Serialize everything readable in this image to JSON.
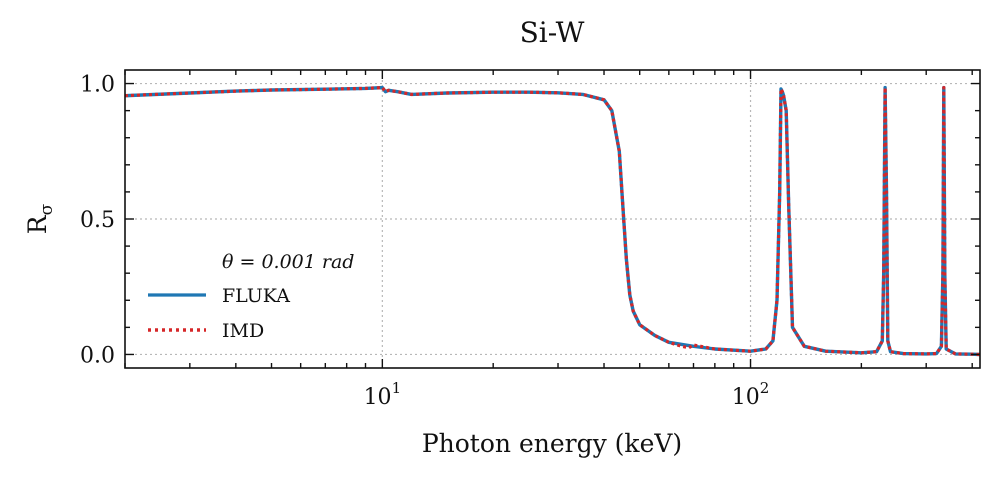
{
  "chart_data": {
    "type": "line",
    "title": "Si-W",
    "xlabel": "Photon energy (keV)",
    "ylabel_base": "R",
    "ylabel_sub": "σ",
    "x_scale": "log",
    "xlim": [
      2,
      420
    ],
    "ylim": [
      -0.05,
      1.05
    ],
    "x_ticks": [
      {
        "value": 10,
        "base": "10",
        "exp": "1"
      },
      {
        "value": 100,
        "base": "10",
        "exp": "2"
      }
    ],
    "y_ticks": [
      {
        "value": 0.0,
        "label": "0.0"
      },
      {
        "value": 0.5,
        "label": "0.5"
      },
      {
        "value": 1.0,
        "label": "1.0"
      }
    ],
    "grid": true,
    "legend": {
      "placement": "center-left",
      "title": "θ = 0.001 rad",
      "entries": [
        {
          "name": "FLUKA",
          "color": "#1f77b4",
          "style": "solid"
        },
        {
          "name": "IMD",
          "color": "#d62728",
          "style": "dotted"
        }
      ]
    },
    "series": [
      {
        "name": "FLUKA",
        "color": "#1f77b4",
        "x": [
          2,
          3,
          4,
          5,
          7,
          9,
          10,
          10.2,
          10.4,
          11,
          12,
          15,
          20,
          25,
          30,
          35,
          40,
          42,
          44,
          45,
          46,
          47,
          48,
          50,
          55,
          60,
          70,
          80,
          100,
          110,
          115,
          118,
          120,
          121,
          122,
          123,
          125,
          127,
          130,
          140,
          160,
          200,
          220,
          228,
          230,
          232,
          234,
          236,
          240,
          260,
          300,
          320,
          330,
          333,
          335,
          337,
          340,
          360,
          400,
          420
        ],
        "y": [
          0.955,
          0.965,
          0.972,
          0.976,
          0.979,
          0.982,
          0.985,
          0.97,
          0.975,
          0.97,
          0.96,
          0.965,
          0.968,
          0.968,
          0.966,
          0.96,
          0.94,
          0.9,
          0.75,
          0.55,
          0.35,
          0.22,
          0.16,
          0.11,
          0.07,
          0.045,
          0.03,
          0.02,
          0.012,
          0.02,
          0.05,
          0.2,
          0.6,
          0.98,
          0.97,
          0.955,
          0.9,
          0.55,
          0.1,
          0.03,
          0.012,
          0.006,
          0.01,
          0.05,
          0.3,
          0.985,
          0.6,
          0.05,
          0.01,
          0.003,
          0.002,
          0.003,
          0.03,
          0.3,
          0.985,
          0.3,
          0.02,
          0.002,
          0.001,
          0.0
        ]
      },
      {
        "name": "IMD",
        "color": "#d62728",
        "x": [
          2,
          3,
          4,
          5,
          7,
          9,
          10,
          10.2,
          10.4,
          11,
          12,
          15,
          20,
          25,
          30,
          35,
          40,
          42,
          44,
          45,
          46,
          47,
          48,
          50,
          55,
          60,
          65,
          68,
          70,
          80,
          100,
          110,
          115,
          118,
          120,
          121,
          122,
          123,
          125,
          127,
          130,
          140,
          160,
          200,
          220,
          228,
          230,
          232,
          234,
          236,
          240,
          260,
          300,
          320,
          330,
          333,
          335,
          337,
          340,
          360,
          400,
          420
        ],
        "y": [
          0.955,
          0.965,
          0.972,
          0.976,
          0.979,
          0.982,
          0.985,
          0.97,
          0.975,
          0.97,
          0.96,
          0.965,
          0.968,
          0.968,
          0.966,
          0.96,
          0.94,
          0.9,
          0.75,
          0.55,
          0.35,
          0.22,
          0.16,
          0.11,
          0.07,
          0.045,
          0.03,
          0.025,
          0.035,
          0.02,
          0.012,
          0.02,
          0.05,
          0.2,
          0.6,
          0.98,
          0.97,
          0.955,
          0.9,
          0.55,
          0.1,
          0.03,
          0.012,
          0.006,
          0.01,
          0.05,
          0.3,
          0.985,
          0.6,
          0.05,
          0.01,
          0.003,
          0.002,
          0.003,
          0.03,
          0.3,
          0.985,
          0.3,
          0.02,
          0.002,
          0.001,
          0.0
        ]
      }
    ]
  }
}
